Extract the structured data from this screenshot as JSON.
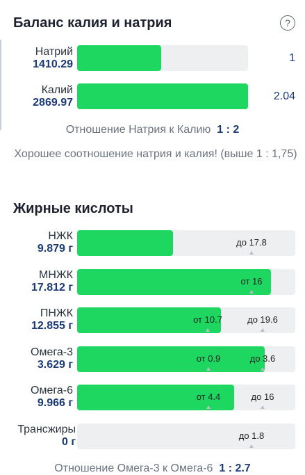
{
  "balance": {
    "title": "Баланс калия и натрия",
    "help_icon": "question-circle-icon",
    "rows": [
      {
        "name": "Натрий",
        "value": "1410.29",
        "fill_fraction": 0.49,
        "side": "1"
      },
      {
        "name": "Калий",
        "value": "2869.97",
        "fill_fraction": 1.0,
        "side": "2.04"
      }
    ],
    "ratio_label": "Отношение Натрия к Калию",
    "ratio_value": "1 : 2",
    "note": "Хорошее соотношение натрия и калия! (выше 1 : 1,75)"
  },
  "fatty": {
    "title": "Жирные кислоты",
    "rows": [
      {
        "name": "НЖК",
        "value": "9.879 г",
        "fill_fraction": 0.44,
        "marks": [
          {
            "text": "до 17.8"
          }
        ]
      },
      {
        "name": "МНЖК",
        "value": "17.812 г",
        "fill_fraction": 0.89,
        "marks": [
          {
            "text": "от 16"
          }
        ]
      },
      {
        "name": "ПНЖК",
        "value": "12.855 г",
        "fill_fraction": 0.66,
        "marks": [
          {
            "text": "от 10.7"
          },
          {
            "text": "до 19.6"
          }
        ]
      },
      {
        "name": "Омега-3",
        "value": "3.629 г",
        "fill_fraction": 0.86,
        "marks": [
          {
            "text": "от 0.9"
          },
          {
            "text": "до 3.6"
          }
        ]
      },
      {
        "name": "Омега-6",
        "value": "9.966 г",
        "fill_fraction": 0.72,
        "marks": [
          {
            "text": "от 4.4"
          },
          {
            "text": "до 16"
          }
        ]
      },
      {
        "name": "Трансжиры",
        "value": "0 г",
        "fill_fraction": 0,
        "marks": [
          {
            "text": "до 1.8"
          }
        ]
      }
    ],
    "ratio_label": "Отношение Омега-3 к Омега-6",
    "ratio_value": "1 : 2.7"
  }
}
